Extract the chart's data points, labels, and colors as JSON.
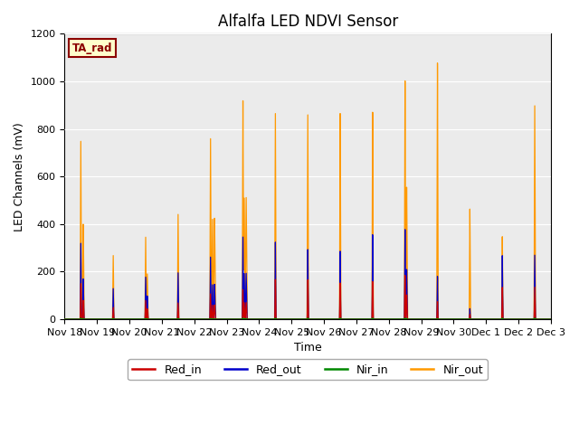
{
  "title": "Alfalfa LED NDVI Sensor",
  "ylabel": "LED Channels (mV)",
  "xlabel": "Time",
  "ylim": [
    0,
    1200
  ],
  "bg_color": "#ebebeb",
  "grid_color": "white",
  "label_box": "TA_rad",
  "legend_labels": [
    "Red_in",
    "Red_out",
    "Nir_in",
    "Nir_out"
  ],
  "legend_colors": [
    "#cc0000",
    "#0000cc",
    "#008800",
    "#ff9900"
  ],
  "xtick_labels": [
    "Nov 18",
    "Nov 19",
    "Nov 20",
    "Nov 21",
    "Nov 22",
    "Nov 23",
    "Nov 24",
    "Nov 25",
    "Nov 26",
    "Nov 27",
    "Nov 28",
    "Nov 29",
    "Nov 30",
    "Dec 1",
    "Dec 2",
    "Dec 3"
  ],
  "days": 15,
  "day_data": [
    {
      "nir_out": 750,
      "red_out": 320,
      "red_in": 150,
      "nir_in": 5,
      "sub": [
        0.0,
        0.15
      ]
    },
    {
      "nir_out": 270,
      "red_out": 130,
      "red_in": 50,
      "nir_in": 3,
      "sub": [
        0.0
      ]
    },
    {
      "nir_out": 350,
      "red_out": 180,
      "red_in": 80,
      "nir_in": 3,
      "sub": [
        0.0,
        0.1
      ]
    },
    {
      "nir_out": 450,
      "red_out": 200,
      "red_in": 70,
      "nir_in": 3,
      "sub": [
        0.0
      ]
    },
    {
      "nir_out": 780,
      "red_out": 270,
      "red_in": 110,
      "nir_in": 3,
      "sub": [
        0.0,
        0.12,
        0.25
      ]
    },
    {
      "nir_out": 950,
      "red_out": 360,
      "red_in": 130,
      "nir_in": 5,
      "sub": [
        0.0,
        0.08,
        0.2
      ]
    },
    {
      "nir_out": 900,
      "red_out": 340,
      "red_in": 175,
      "nir_in": 5,
      "sub": [
        0.0
      ]
    },
    {
      "nir_out": 900,
      "red_out": 310,
      "red_in": 175,
      "nir_in": 5,
      "sub": [
        0.0
      ]
    },
    {
      "nir_out": 900,
      "red_out": 300,
      "red_in": 160,
      "nir_in": 5,
      "sub": [
        0.0
      ]
    },
    {
      "nir_out": 900,
      "red_out": 370,
      "red_in": 165,
      "nir_in": 5,
      "sub": [
        0.0
      ]
    },
    {
      "nir_out": 1030,
      "red_out": 390,
      "red_in": 190,
      "nir_in": 5,
      "sub": [
        0.0,
        0.1
      ]
    },
    {
      "nir_out": 1100,
      "red_out": 185,
      "red_in": 75,
      "nir_in": 3,
      "sub": [
        0.0
      ]
    },
    {
      "nir_out": 470,
      "red_out": 45,
      "red_in": 20,
      "nir_in": 2,
      "sub": [
        0.0
      ]
    },
    {
      "nir_out": 350,
      "red_out": 270,
      "red_in": 135,
      "nir_in": 5,
      "sub": [
        0.0
      ]
    },
    {
      "nir_out": 900,
      "red_out": 270,
      "red_in": 135,
      "nir_in": 5,
      "sub": [
        0.0
      ]
    }
  ]
}
